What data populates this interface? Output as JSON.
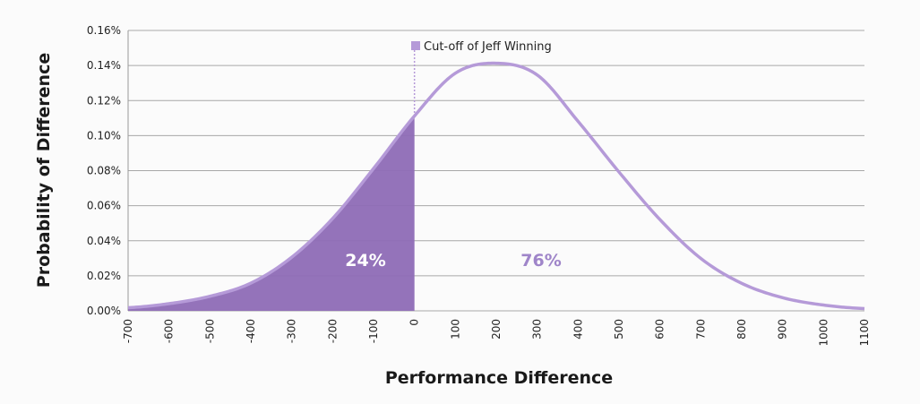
{
  "chart_data": {
    "type": "area",
    "xlabel": "Performance Difference",
    "ylabel": "Probability of Difference",
    "xlim": [
      -700,
      1100
    ],
    "ylim": [
      0,
      0.16
    ],
    "x_ticks": [
      "-700",
      "-600",
      "-500",
      "-400",
      "-300",
      "-200",
      "-100",
      "0",
      "100",
      "200",
      "300",
      "400",
      "500",
      "600",
      "700",
      "800",
      "900",
      "1000",
      "1100"
    ],
    "y_ticks": [
      "0.00%",
      "0.02%",
      "0.04%",
      "0.06%",
      "0.08%",
      "0.10%",
      "0.12%",
      "0.14%",
      "0.16%"
    ],
    "y_tick_values": [
      0,
      0.02,
      0.04,
      0.06,
      0.08,
      0.1,
      0.12,
      0.14,
      0.16
    ],
    "grid": true,
    "series": [
      {
        "name": "Cut-off of Jeff Winning",
        "x": [
          -700,
          -600,
          -500,
          -400,
          -300,
          -200,
          -100,
          0,
          100,
          200,
          300,
          400,
          500,
          600,
          700,
          800,
          900,
          1000,
          1100
        ],
        "y": [
          0.0018,
          0.0041,
          0.0083,
          0.0158,
          0.0306,
          0.0527,
          0.0812,
          0.1112,
          0.1356,
          0.1413,
          0.1346,
          0.1081,
          0.0792,
          0.0521,
          0.0299,
          0.0157,
          0.0075,
          0.0033,
          0.0013
        ]
      }
    ],
    "cutoff_x": 0,
    "annotations": [
      {
        "text": "24%",
        "region": "left"
      },
      {
        "text": "76%",
        "region": "right"
      }
    ],
    "legend_position": "top-center",
    "colors": {
      "curve": "#b59ad8",
      "fill": "#8e6bb6",
      "text_right": "#9f85c9",
      "grid": "#a8a8a8"
    }
  }
}
